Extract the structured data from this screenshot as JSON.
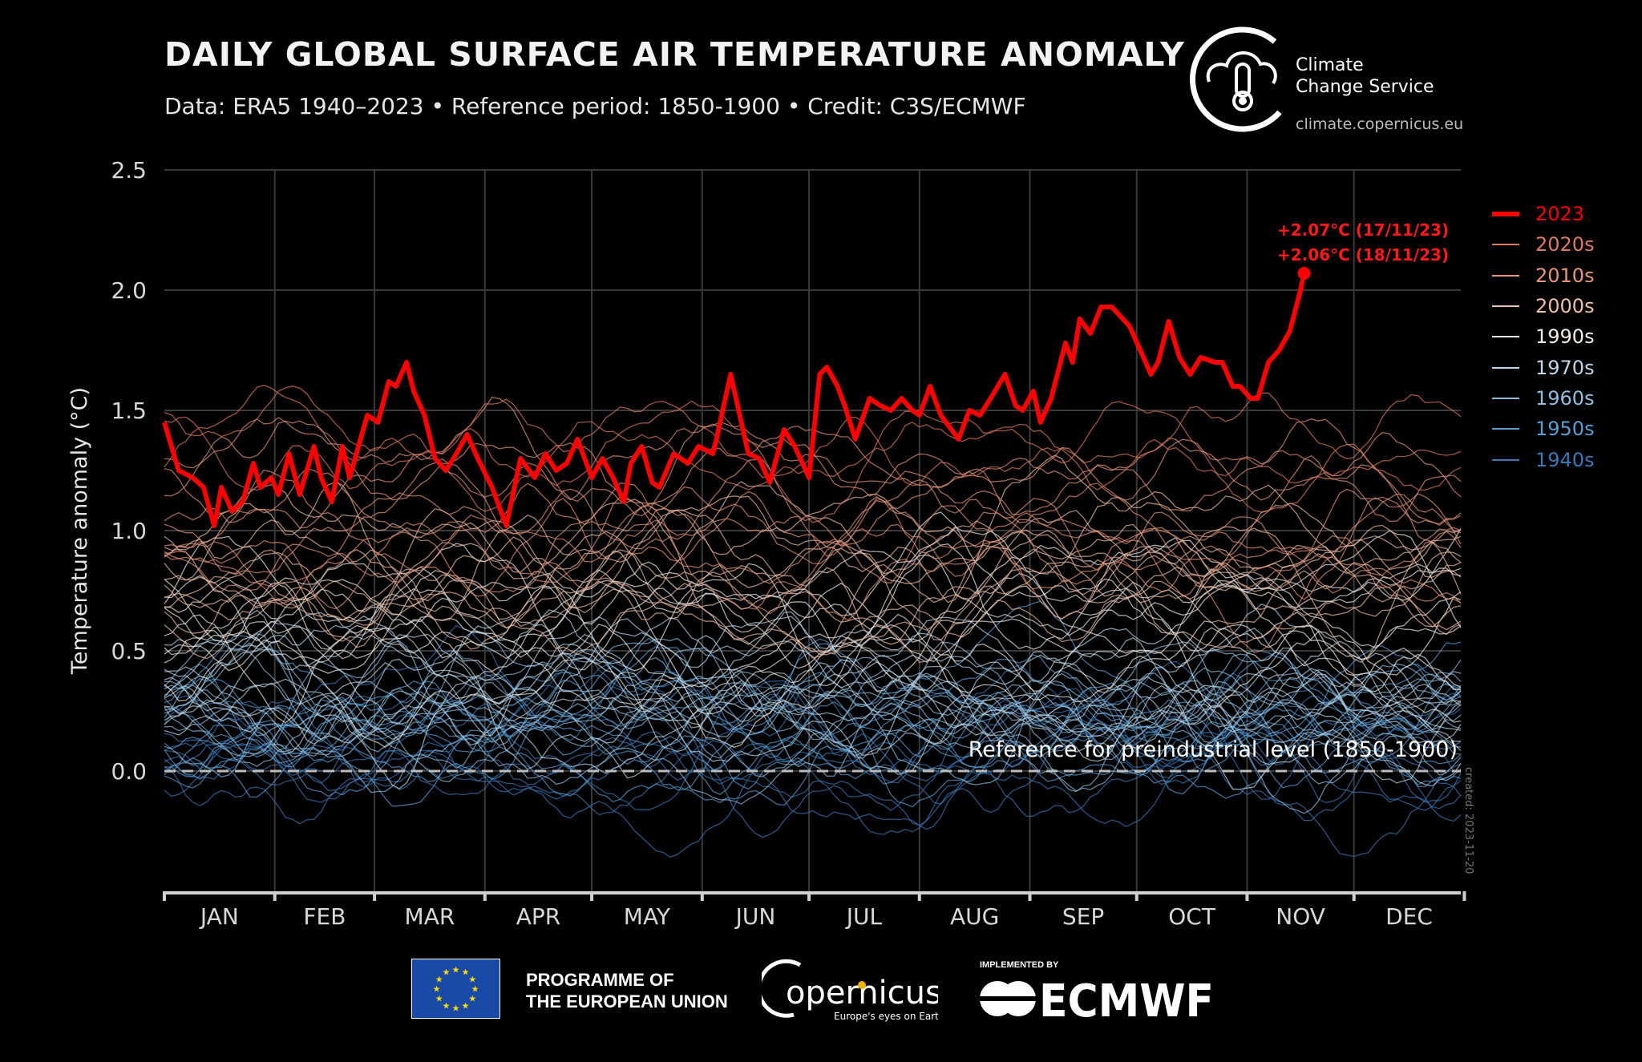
{
  "header": {
    "title": "DAILY GLOBAL SURFACE AIR TEMPERATURE ANOMALY",
    "subtitle": "Data: ERA5 1940–2023 • Reference period: 1850-1900 • Credit: C3S/ECMWF"
  },
  "logo": {
    "line1": "Climate",
    "line2": "Change Service",
    "url": "climate.copernicus.eu"
  },
  "footer": {
    "eu_line1": "PROGRAMME OF",
    "eu_line2": "THE EUROPEAN UNION",
    "copernicus": "Copernicus",
    "copernicus_tagline": "Europe's eyes on Earth",
    "implemented_by": "IMPLEMENTED BY",
    "ecmwf": "ECMWF"
  },
  "created": "created: 2023-11-20",
  "chart_data": {
    "type": "line",
    "title": "DAILY GLOBAL SURFACE AIR TEMPERATURE ANOMALY",
    "ylabel": "Temperature anomaly (°C)",
    "xlabel": "",
    "ylim": [
      -0.5,
      2.5
    ],
    "yticks": [
      "0.0",
      "0.5",
      "1.0",
      "1.5",
      "2.0",
      "2.5"
    ],
    "ytick_values": [
      0,
      0.5,
      1.0,
      1.5,
      2.0,
      2.5
    ],
    "xticks": [
      "JAN",
      "FEB",
      "MAR",
      "APR",
      "MAY",
      "JUN",
      "JUL",
      "AUG",
      "SEP",
      "OCT",
      "NOV",
      "DEC"
    ],
    "grid": true,
    "legend_placement": "right",
    "reference_line": {
      "value": 0.0,
      "label": "Reference for preindustrial level (1850-1900)"
    },
    "annotations": [
      "+2.07°C (17/11/23)",
      "+2.06°C (18/11/23)"
    ],
    "highlight": {
      "name": "2023",
      "color": "#ff0000",
      "x": [
        "01-01",
        "01-03",
        "01-05",
        "01-09",
        "01-12",
        "01-15",
        "01-17",
        "01-20",
        "01-23",
        "01-26",
        "01-28",
        "01-31",
        "02-02",
        "02-05",
        "02-08",
        "02-12",
        "02-14",
        "02-17",
        "02-20",
        "02-22",
        "02-27",
        "03-02",
        "03-05",
        "03-07",
        "03-10",
        "03-12",
        "03-15",
        "03-18",
        "03-21",
        "03-24",
        "03-27",
        "03-30",
        "04-03",
        "04-07",
        "04-11",
        "04-15",
        "04-18",
        "04-21",
        "04-24",
        "04-27",
        "05-01",
        "05-04",
        "05-07",
        "05-10",
        "05-12",
        "05-15",
        "05-18",
        "05-20",
        "05-24",
        "05-28",
        "05-31",
        "06-04",
        "06-05",
        "06-09",
        "06-12",
        "06-14",
        "06-17",
        "06-20",
        "06-24",
        "06-27",
        "07-01",
        "07-04",
        "07-06",
        "07-09",
        "07-11",
        "07-14",
        "07-18",
        "07-21",
        "07-24",
        "07-27",
        "07-30",
        "08-01",
        "08-04",
        "08-07",
        "08-10",
        "08-12",
        "08-15",
        "08-18",
        "08-21",
        "08-25",
        "08-28",
        "08-30",
        "09-02",
        "09-04",
        "09-07",
        "09-11",
        "09-13",
        "09-15",
        "09-18",
        "09-21",
        "09-24",
        "09-29",
        "10-02",
        "10-05",
        "10-07",
        "10-10",
        "10-13",
        "10-16",
        "10-19",
        "10-23",
        "10-25",
        "10-28",
        "10-30",
        "11-02",
        "11-04",
        "11-07",
        "11-10",
        "11-13",
        "11-16",
        "11-17",
        "11-18"
      ],
      "y": [
        1.45,
        1.35,
        1.25,
        1.22,
        1.18,
        1.02,
        1.18,
        1.08,
        1.12,
        1.28,
        1.18,
        1.22,
        1.15,
        1.32,
        1.15,
        1.35,
        1.22,
        1.12,
        1.35,
        1.22,
        1.48,
        1.45,
        1.62,
        1.6,
        1.7,
        1.58,
        1.48,
        1.3,
        1.25,
        1.32,
        1.4,
        1.3,
        1.18,
        1.02,
        1.3,
        1.22,
        1.32,
        1.25,
        1.28,
        1.38,
        1.22,
        1.3,
        1.22,
        1.12,
        1.28,
        1.35,
        1.2,
        1.18,
        1.32,
        1.28,
        1.35,
        1.32,
        1.38,
        1.65,
        1.45,
        1.32,
        1.3,
        1.2,
        1.42,
        1.35,
        1.22,
        1.65,
        1.68,
        1.6,
        1.52,
        1.38,
        1.55,
        1.52,
        1.5,
        1.55,
        1.5,
        1.48,
        1.6,
        1.48,
        1.42,
        1.38,
        1.5,
        1.48,
        1.55,
        1.65,
        1.52,
        1.5,
        1.58,
        1.45,
        1.55,
        1.78,
        1.7,
        1.88,
        1.82,
        1.93,
        1.93,
        1.85,
        1.75,
        1.65,
        1.7,
        1.87,
        1.72,
        1.65,
        1.72,
        1.7,
        1.7,
        1.6,
        1.6,
        1.55,
        1.55,
        1.7,
        1.75,
        1.83,
        2.0,
        2.07,
        2.06
      ]
    },
    "series": [
      {
        "name": "2020s",
        "color": "#e07a5f",
        "years": 3,
        "approx_range": [
          0.9,
          1.75
        ]
      },
      {
        "name": "2010s",
        "color": "#e8957a",
        "years": 10,
        "approx_range": [
          0.6,
          1.5
        ]
      },
      {
        "name": "2000s",
        "color": "#efbfa6",
        "years": 10,
        "approx_range": [
          0.45,
          1.2
        ]
      },
      {
        "name": "1990s",
        "color": "#f4eeea",
        "years": 10,
        "approx_range": [
          0.25,
          0.95
        ]
      },
      {
        "name": "1970s",
        "color": "#bcd8ea",
        "years": 10,
        "approx_range": [
          0.0,
          0.7
        ]
      },
      {
        "name": "1960s",
        "color": "#8dbfe0",
        "years": 10,
        "approx_range": [
          -0.1,
          0.6
        ]
      },
      {
        "name": "1950s",
        "color": "#5a9fd4",
        "years": 10,
        "approx_range": [
          -0.2,
          0.55
        ]
      },
      {
        "name": "1940s",
        "color": "#3a78b5",
        "years": 10,
        "approx_range": [
          -0.35,
          0.5
        ]
      }
    ]
  }
}
